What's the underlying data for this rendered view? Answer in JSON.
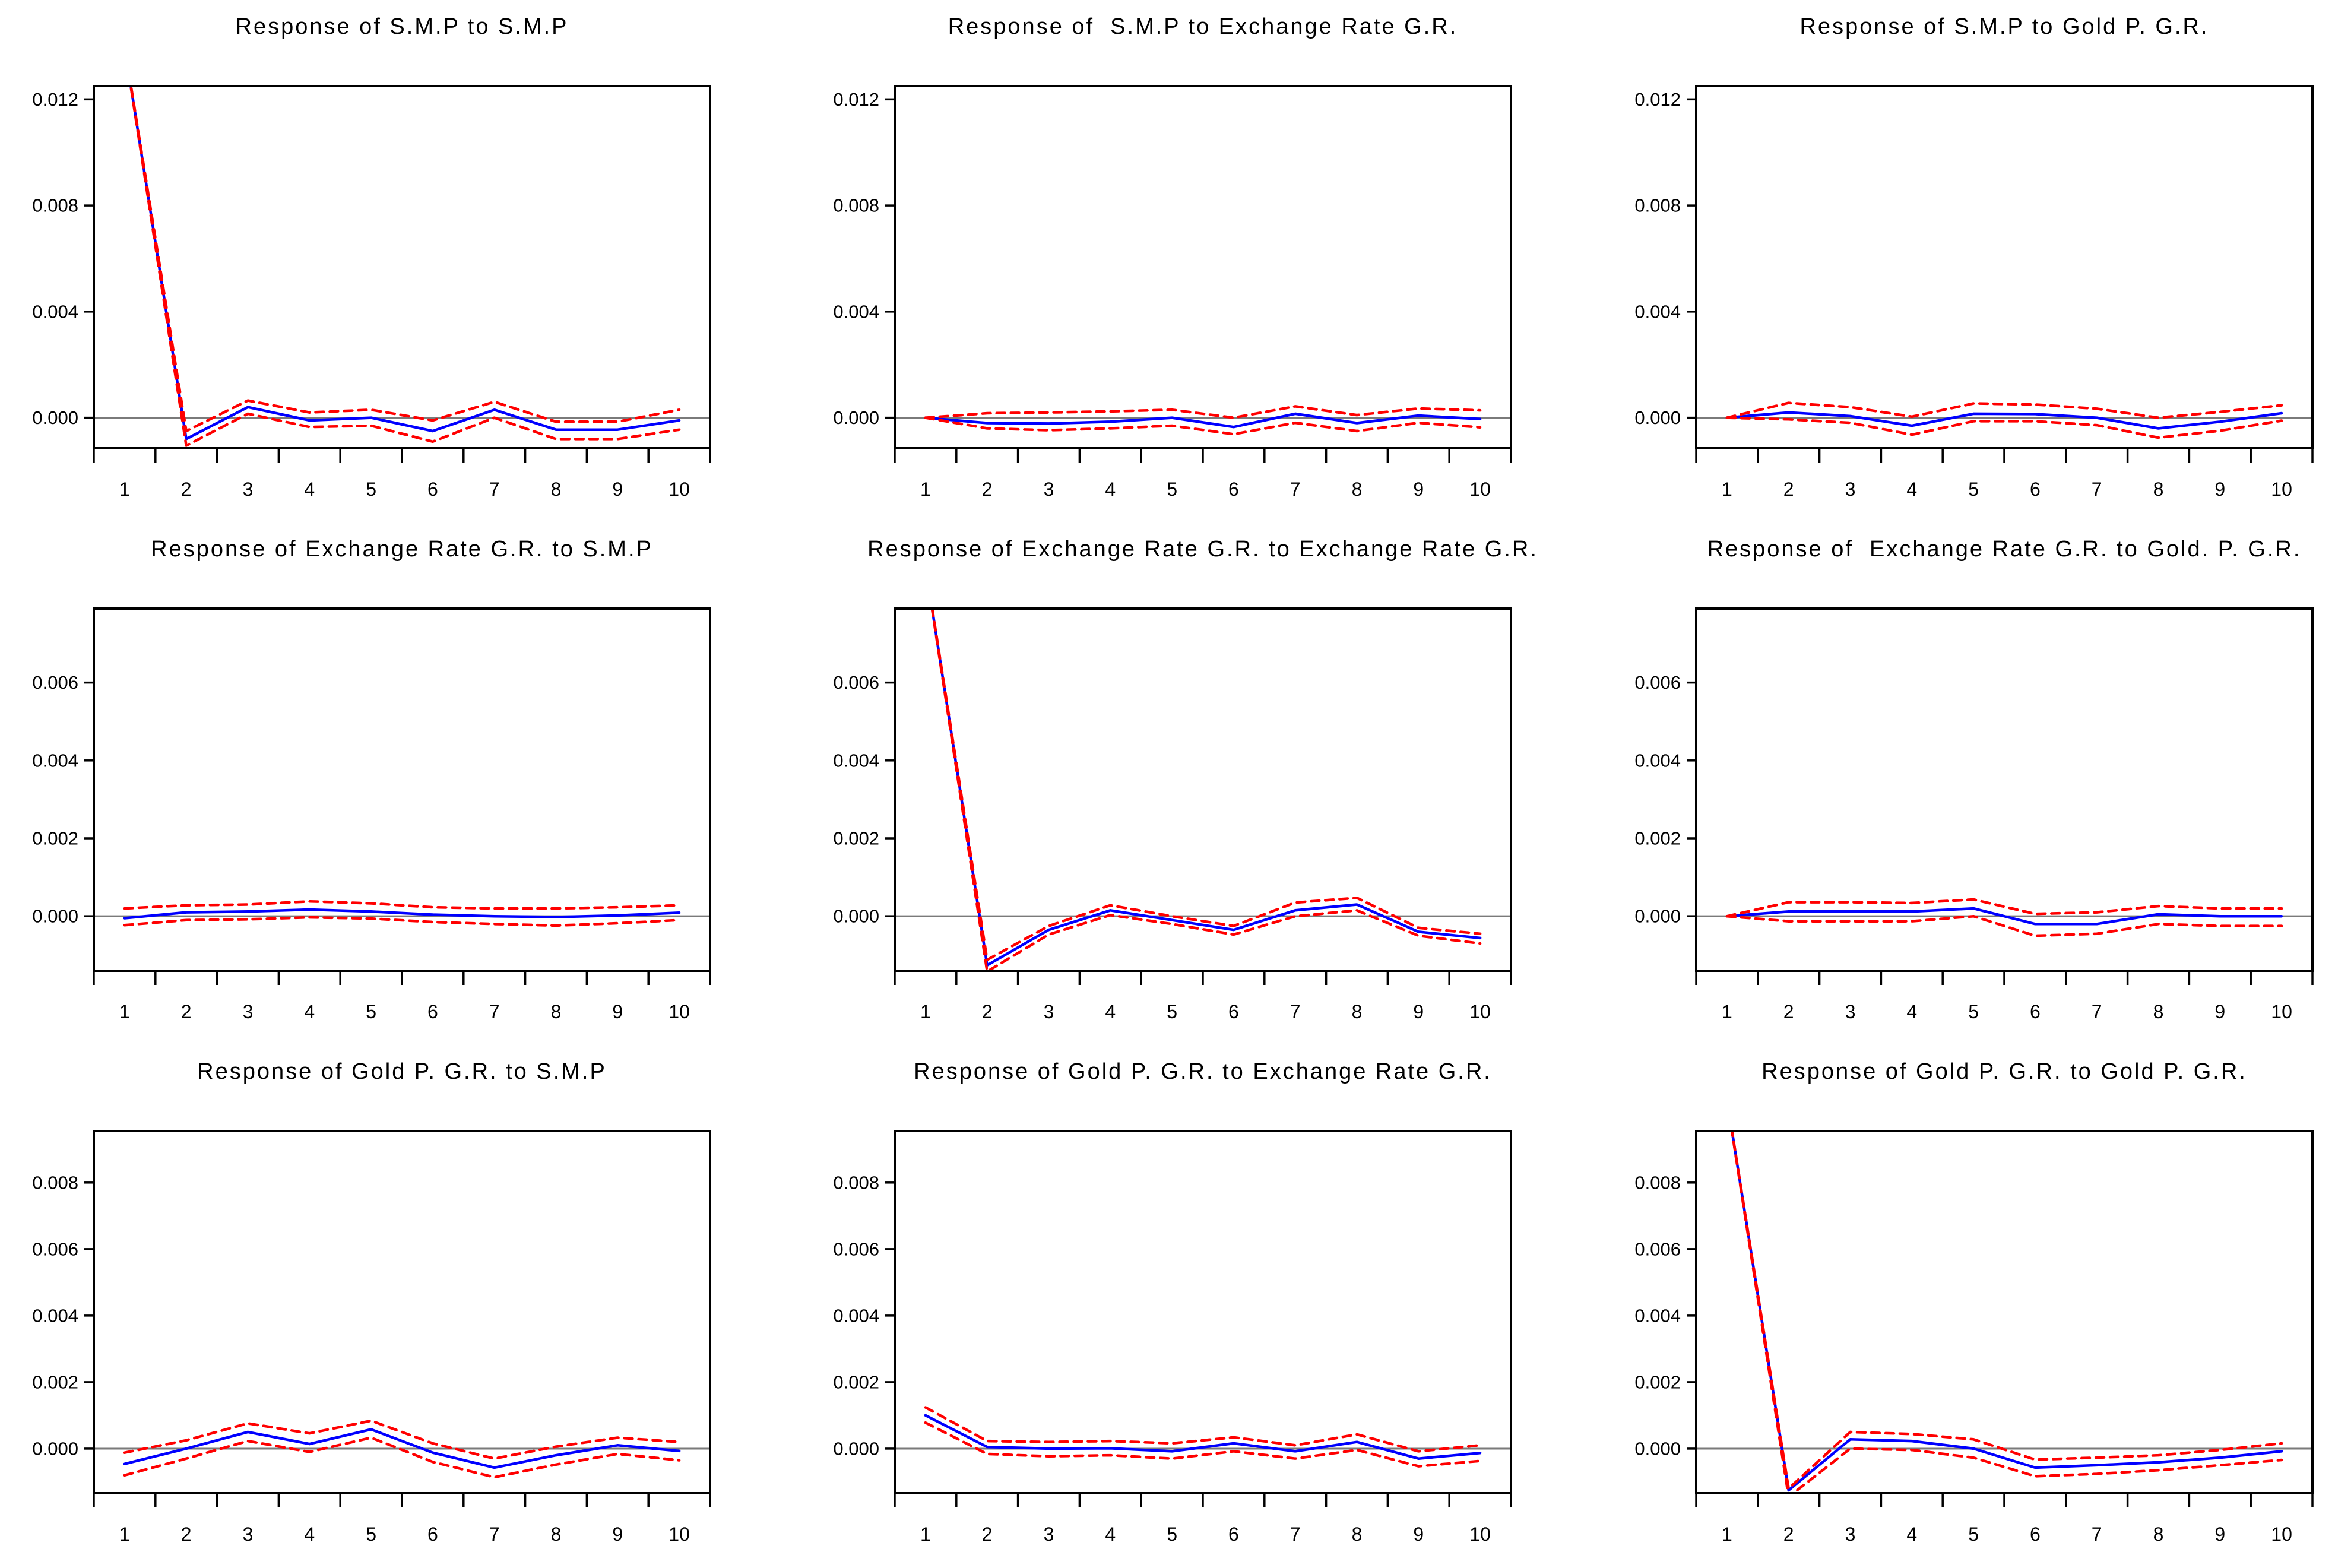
{
  "page": {
    "background": "#ffffff"
  },
  "colors": {
    "response_line": "#0000ff",
    "confidence_band": "#ff0000",
    "zero_line": "#7a7a7a",
    "axis": "#000000",
    "text": "#000000"
  },
  "chart_data": [
    {
      "type": "line",
      "title": "Response of S.M.P to S.M.P",
      "x_labels": [
        "1",
        "2",
        "3",
        "4",
        "5",
        "6",
        "7",
        "8",
        "9",
        "10"
      ],
      "ylim": [
        -0.00115,
        0.0125
      ],
      "y_ticks": [
        {
          "label": "0.012",
          "value": 0.012
        },
        {
          "label": "0.008",
          "value": 0.008
        },
        {
          "label": "0.004",
          "value": 0.004
        },
        {
          "label": "0.000",
          "value": 0.0
        }
      ],
      "series": [
        {
          "name": "impulse-response",
          "color": "#0000ff",
          "dashed": false,
          "values": [
            0.014,
            -0.0008,
            0.0004,
            -0.0001,
            0.0,
            -0.0005,
            0.0003,
            -0.00045,
            -0.00045,
            -0.0001
          ]
        },
        {
          "name": "upper-band",
          "color": "#ff0000",
          "dashed": true,
          "values": [
            0.014,
            -0.0005,
            0.00065,
            0.0002,
            0.0003,
            -0.0001,
            0.0006,
            -0.00015,
            -0.00015,
            0.0003
          ]
        },
        {
          "name": "lower-band",
          "color": "#ff0000",
          "dashed": true,
          "values": [
            0.014,
            -0.00105,
            0.00015,
            -0.00035,
            -0.0003,
            -0.0009,
            0.0,
            -0.0008,
            -0.0008,
            -0.00045
          ]
        }
      ]
    },
    {
      "type": "line",
      "title": "Response of  S.M.P to Exchange Rate G.R.",
      "x_labels": [
        "1",
        "2",
        "3",
        "4",
        "5",
        "6",
        "7",
        "8",
        "9",
        "10"
      ],
      "ylim": [
        -0.00115,
        0.0125
      ],
      "y_ticks": [
        {
          "label": "0.012",
          "value": 0.012
        },
        {
          "label": "0.008",
          "value": 0.008
        },
        {
          "label": "0.004",
          "value": 0.004
        },
        {
          "label": "0.000",
          "value": 0.0
        }
      ],
      "series": [
        {
          "name": "impulse-response",
          "color": "#0000ff",
          "dashed": false,
          "values": [
            0.0,
            -0.0002,
            -0.00022,
            -0.00015,
            0.0,
            -0.00035,
            0.00015,
            -0.0002,
            8e-05,
            -5e-05
          ]
        },
        {
          "name": "upper-band",
          "color": "#ff0000",
          "dashed": true,
          "values": [
            0.0,
            0.00017,
            0.0002,
            0.00024,
            0.0003,
            0.0,
            0.00043,
            0.0001,
            0.00035,
            0.00028
          ]
        },
        {
          "name": "lower-band",
          "color": "#ff0000",
          "dashed": true,
          "values": [
            0.0,
            -0.0004,
            -0.00047,
            -0.0004,
            -0.0003,
            -0.00062,
            -0.00019,
            -0.0005,
            -0.00019,
            -0.00036
          ]
        }
      ]
    },
    {
      "type": "line",
      "title": "Response of S.M.P to Gold P. G.R.",
      "x_labels": [
        "1",
        "2",
        "3",
        "4",
        "5",
        "6",
        "7",
        "8",
        "9",
        "10"
      ],
      "ylim": [
        -0.00115,
        0.0125
      ],
      "y_ticks": [
        {
          "label": "0.012",
          "value": 0.012
        },
        {
          "label": "0.008",
          "value": 0.008
        },
        {
          "label": "0.004",
          "value": 0.004
        },
        {
          "label": "0.000",
          "value": 0.0
        }
      ],
      "series": [
        {
          "name": "impulse-response",
          "color": "#0000ff",
          "dashed": false,
          "values": [
            0.0,
            0.0002,
            6e-05,
            -0.0003,
            0.00015,
            0.00014,
            0.0,
            -0.0004,
            -0.00015,
            0.00017
          ]
        },
        {
          "name": "upper-band",
          "color": "#ff0000",
          "dashed": true,
          "values": [
            0.0,
            0.00056,
            0.0004,
            4e-05,
            0.00054,
            0.0005,
            0.00034,
            0.0,
            0.00022,
            0.00047
          ]
        },
        {
          "name": "lower-band",
          "color": "#ff0000",
          "dashed": true,
          "values": [
            0.0,
            -6e-05,
            -0.00019,
            -0.00064,
            -0.00013,
            -0.00013,
            -0.00028,
            -0.00075,
            -0.00049,
            -0.00011
          ]
        }
      ]
    },
    {
      "type": "line",
      "title": "Response of Exchange Rate G.R. to S.M.P",
      "x_labels": [
        "1",
        "2",
        "3",
        "4",
        "5",
        "6",
        "7",
        "8",
        "9",
        "10"
      ],
      "ylim": [
        -0.0014,
        0.0079
      ],
      "y_ticks": [
        {
          "label": "0.006",
          "value": 0.006
        },
        {
          "label": "0.004",
          "value": 0.004
        },
        {
          "label": "0.002",
          "value": 0.002
        },
        {
          "label": "0.000",
          "value": 0.0
        }
      ],
      "series": [
        {
          "name": "impulse-response",
          "color": "#0000ff",
          "dashed": false,
          "values": [
            -5e-05,
            0.0001,
            0.00012,
            0.00017,
            0.00012,
            4e-05,
            0.0,
            -2e-05,
            2e-05,
            9e-05
          ]
        },
        {
          "name": "upper-band",
          "color": "#ff0000",
          "dashed": true,
          "values": [
            0.0002,
            0.00028,
            0.0003,
            0.00038,
            0.00033,
            0.00023,
            0.0002,
            0.0002,
            0.00023,
            0.00028
          ]
        },
        {
          "name": "lower-band",
          "color": "#ff0000",
          "dashed": true,
          "values": [
            -0.00023,
            -0.0001,
            -8e-05,
            -3e-05,
            -6e-05,
            -0.00015,
            -0.0002,
            -0.00024,
            -0.00018,
            -0.0001
          ]
        }
      ]
    },
    {
      "type": "line",
      "title": "Response of Exchange Rate G.R. to Exchange Rate G.R.",
      "x_labels": [
        "1",
        "2",
        "3",
        "4",
        "5",
        "6",
        "7",
        "8",
        "9",
        "10"
      ],
      "ylim": [
        -0.0014,
        0.0079
      ],
      "y_ticks": [
        {
          "label": "0.006",
          "value": 0.006
        },
        {
          "label": "0.004",
          "value": 0.004
        },
        {
          "label": "0.002",
          "value": 0.002
        },
        {
          "label": "0.000",
          "value": 0.0
        }
      ],
      "series": [
        {
          "name": "impulse-response",
          "color": "#0000ff",
          "dashed": false,
          "values": [
            0.009,
            -0.00126,
            -0.00035,
            0.00015,
            -0.0001,
            -0.00035,
            0.00015,
            0.0003,
            -0.0004,
            -0.00056
          ]
        },
        {
          "name": "upper-band",
          "color": "#ff0000",
          "dashed": true,
          "values": [
            0.009,
            -0.00112,
            -0.00025,
            0.00028,
            0.0,
            -0.00025,
            0.00035,
            0.00047,
            -0.0003,
            -0.00045
          ]
        },
        {
          "name": "lower-band",
          "color": "#ff0000",
          "dashed": true,
          "values": [
            0.009,
            -0.00142,
            -0.00047,
            3e-05,
            -0.0002,
            -0.00047,
            0.0,
            0.00015,
            -0.0005,
            -0.0007
          ]
        }
      ]
    },
    {
      "type": "line",
      "title": "Response of  Exchange Rate G.R. to Gold. P. G.R.",
      "x_labels": [
        "1",
        "2",
        "3",
        "4",
        "5",
        "6",
        "7",
        "8",
        "9",
        "10"
      ],
      "ylim": [
        -0.0014,
        0.0079
      ],
      "y_ticks": [
        {
          "label": "0.006",
          "value": 0.006
        },
        {
          "label": "0.004",
          "value": 0.004
        },
        {
          "label": "0.002",
          "value": 0.002
        },
        {
          "label": "0.000",
          "value": 0.0
        }
      ],
      "series": [
        {
          "name": "impulse-response",
          "color": "#0000ff",
          "dashed": false,
          "values": [
            0.0,
            0.00012,
            0.00012,
            0.00012,
            0.0002,
            -0.0002,
            -0.0002,
            5e-05,
            0.0,
            0.0
          ]
        },
        {
          "name": "upper-band",
          "color": "#ff0000",
          "dashed": true,
          "values": [
            0.0,
            0.00036,
            0.00036,
            0.00034,
            0.00043,
            6e-05,
            0.0001,
            0.00026,
            0.0002,
            0.0002
          ]
        },
        {
          "name": "lower-band",
          "color": "#ff0000",
          "dashed": true,
          "values": [
            0.0,
            -0.00013,
            -0.00013,
            -0.00013,
            0.0,
            -0.0005,
            -0.00045,
            -0.0002,
            -0.00025,
            -0.00025
          ]
        }
      ]
    },
    {
      "type": "line",
      "title": "Response of Gold P. G.R. to S.M.P",
      "x_labels": [
        "1",
        "2",
        "3",
        "4",
        "5",
        "6",
        "7",
        "8",
        "9",
        "10"
      ],
      "ylim": [
        -0.00134,
        0.00955
      ],
      "y_ticks": [
        {
          "label": "0.008",
          "value": 0.008
        },
        {
          "label": "0.006",
          "value": 0.006
        },
        {
          "label": "0.004",
          "value": 0.004
        },
        {
          "label": "0.002",
          "value": 0.002
        },
        {
          "label": "0.000",
          "value": 0.0
        }
      ],
      "series": [
        {
          "name": "impulse-response",
          "color": "#0000ff",
          "dashed": false,
          "values": [
            -0.00046,
            0.0,
            0.0005,
            0.00014,
            0.00058,
            -0.00012,
            -0.00057,
            -0.0002,
            0.0001,
            -7e-05
          ]
        },
        {
          "name": "upper-band",
          "color": "#ff0000",
          "dashed": true,
          "values": [
            -0.00012,
            0.00025,
            0.00076,
            0.00046,
            0.00084,
            0.00016,
            -0.0003,
            6e-05,
            0.00033,
            0.0002
          ]
        },
        {
          "name": "lower-band",
          "color": "#ff0000",
          "dashed": true,
          "values": [
            -0.0008,
            -0.0003,
            0.00023,
            -0.0001,
            0.00033,
            -0.0004,
            -0.00086,
            -0.00048,
            -0.00016,
            -0.00035
          ]
        }
      ]
    },
    {
      "type": "line",
      "title": "Response of Gold P. G.R. to Exchange Rate G.R.",
      "x_labels": [
        "1",
        "2",
        "3",
        "4",
        "5",
        "6",
        "7",
        "8",
        "9",
        "10"
      ],
      "ylim": [
        -0.00134,
        0.00955
      ],
      "y_ticks": [
        {
          "label": "0.008",
          "value": 0.008
        },
        {
          "label": "0.006",
          "value": 0.006
        },
        {
          "label": "0.004",
          "value": 0.004
        },
        {
          "label": "0.002",
          "value": 0.002
        },
        {
          "label": "0.000",
          "value": 0.0
        }
      ],
      "series": [
        {
          "name": "impulse-response",
          "color": "#0000ff",
          "dashed": false,
          "values": [
            0.001,
            5e-05,
            0.0,
            1e-05,
            -8e-05,
            0.00016,
            -8e-05,
            0.0002,
            -0.0003,
            -0.00013
          ]
        },
        {
          "name": "upper-band",
          "color": "#ff0000",
          "dashed": true,
          "values": [
            0.00124,
            0.00023,
            0.0002,
            0.00023,
            0.00016,
            0.00034,
            0.0001,
            0.00043,
            -8e-05,
            0.0001
          ]
        },
        {
          "name": "lower-band",
          "color": "#ff0000",
          "dashed": true,
          "values": [
            0.00078,
            -0.00016,
            -0.00023,
            -0.0002,
            -0.0003,
            -8e-05,
            -0.0003,
            -4e-05,
            -0.00053,
            -0.00037
          ]
        }
      ]
    },
    {
      "type": "line",
      "title": "Response of Gold P. G.R. to Gold P. G.R.",
      "x_labels": [
        "1",
        "2",
        "3",
        "4",
        "5",
        "6",
        "7",
        "8",
        "9",
        "10"
      ],
      "ylim": [
        -0.00134,
        0.00955
      ],
      "y_ticks": [
        {
          "label": "0.008",
          "value": 0.008
        },
        {
          "label": "0.006",
          "value": 0.006
        },
        {
          "label": "0.004",
          "value": 0.004
        },
        {
          "label": "0.002",
          "value": 0.002
        },
        {
          "label": "0.000",
          "value": 0.0
        }
      ],
      "series": [
        {
          "name": "impulse-response",
          "color": "#0000ff",
          "dashed": false,
          "values": [
            0.0105,
            -0.00125,
            0.00028,
            0.00023,
            0.0,
            -0.00057,
            -0.0005,
            -0.00041,
            -0.00027,
            -8e-05
          ]
        },
        {
          "name": "upper-band",
          "color": "#ff0000",
          "dashed": true,
          "values": [
            0.0105,
            -0.0012,
            0.0005,
            0.00044,
            0.00028,
            -0.00033,
            -0.00027,
            -0.0002,
            -4e-05,
            0.00016
          ]
        },
        {
          "name": "lower-band",
          "color": "#ff0000",
          "dashed": true,
          "values": [
            0.0105,
            -0.00145,
            0.0,
            -4e-05,
            -0.00027,
            -0.00083,
            -0.00076,
            -0.00065,
            -0.0005,
            -0.00034
          ]
        }
      ]
    }
  ]
}
